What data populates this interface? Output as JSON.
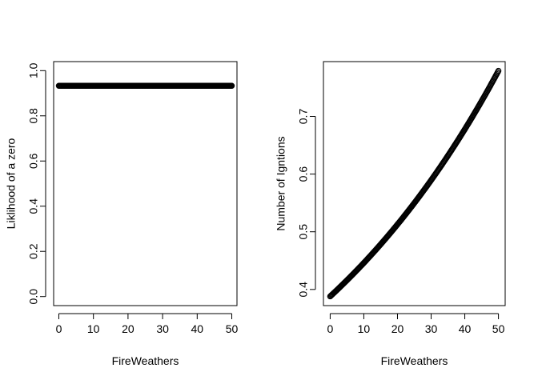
{
  "chart_data": [
    {
      "type": "scatter",
      "xlabel": "FireWeathers",
      "ylabel": "Liklihood of a zero",
      "xlim": [
        -1.5,
        51.5
      ],
      "ylim": [
        -0.04,
        1.04
      ],
      "xticks": [
        0,
        10,
        20,
        30,
        40,
        50
      ],
      "yticks": [
        0.0,
        0.2,
        0.4,
        0.6,
        0.8,
        1.0
      ],
      "ytick_labels": [
        "0.0",
        "0.2",
        "0.4",
        "0.6",
        "0.8",
        "1.0"
      ],
      "series": [
        {
          "x_range": [
            0,
            50
          ],
          "n_points": 300,
          "formula": "constant",
          "y_value": 0.933
        }
      ]
    },
    {
      "type": "scatter",
      "xlabel": "FireWeathers",
      "ylabel": "Number of Igntions",
      "xlim": [
        -2,
        52
      ],
      "ylim": [
        0.372,
        0.795
      ],
      "xticks": [
        0,
        10,
        20,
        30,
        40,
        50
      ],
      "yticks": [
        0.4,
        0.5,
        0.6,
        0.7
      ],
      "ytick_labels": [
        "0.4",
        "0.5",
        "0.6",
        "0.7"
      ],
      "series": [
        {
          "x_range": [
            0,
            50
          ],
          "n_points": 300,
          "formula": "exponential",
          "y_start": 0.388,
          "y_end": 0.779
        }
      ]
    }
  ]
}
